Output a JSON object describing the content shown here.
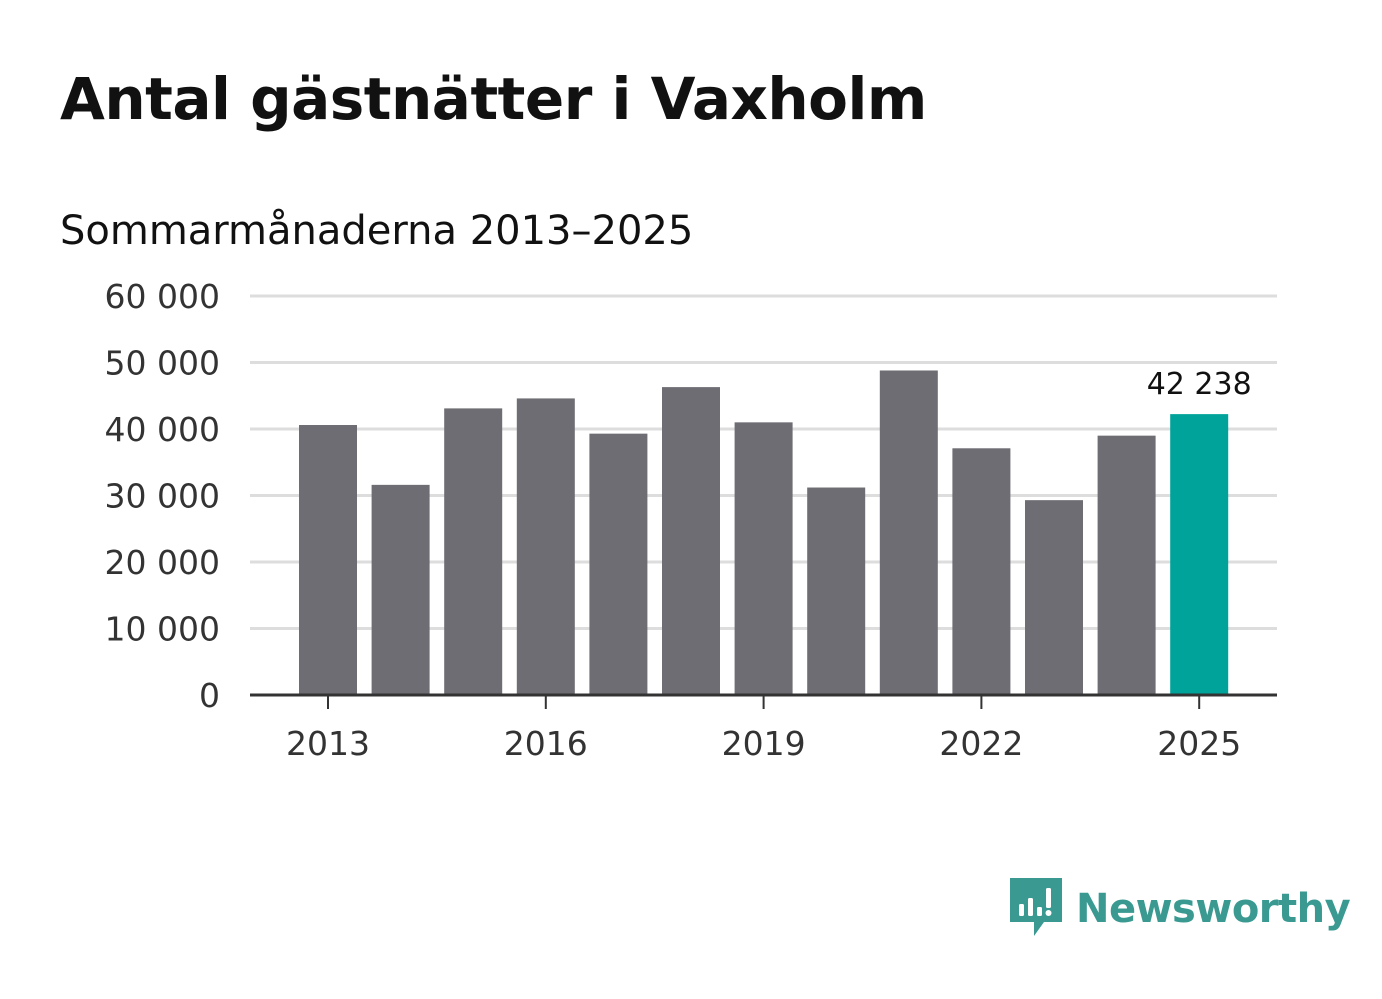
{
  "title": "Antal gästnätter i Vaxholm",
  "subtitle": "Sommarmånaderna 2013–2025",
  "brand": {
    "name": "Newsworthy",
    "color": "#3a9a92",
    "icon": "newsworthy-logo-icon"
  },
  "colors": {
    "bar": "#6e6d73",
    "highlight": "#00a39a",
    "grid": "#dddddd",
    "axis": "#333333"
  },
  "chart_data": {
    "type": "bar",
    "title": "Antal gästnätter i Vaxholm",
    "subtitle": "Sommarmånaderna 2013–2025",
    "categories": [
      "2013",
      "2014",
      "2015",
      "2016",
      "2017",
      "2018",
      "2019",
      "2020",
      "2021",
      "2022",
      "2023",
      "2024",
      "2025"
    ],
    "values": [
      40600,
      31600,
      43100,
      44600,
      39300,
      46300,
      41000,
      31200,
      48800,
      37100,
      29300,
      39000,
      42238
    ],
    "x_tick_labels": [
      "2013",
      "2016",
      "2019",
      "2022",
      "2025"
    ],
    "y_ticks": [
      0,
      10000,
      20000,
      30000,
      40000,
      50000,
      60000
    ],
    "y_tick_labels": [
      "0",
      "10 000",
      "20 000",
      "30 000",
      "40 000",
      "50 000",
      "60 000"
    ],
    "ylim": [
      0,
      60000
    ],
    "xlabel": "",
    "ylabel": "",
    "grid": true,
    "highlight_index": 12,
    "annotation": {
      "category": "2025",
      "label": "42 238"
    }
  }
}
